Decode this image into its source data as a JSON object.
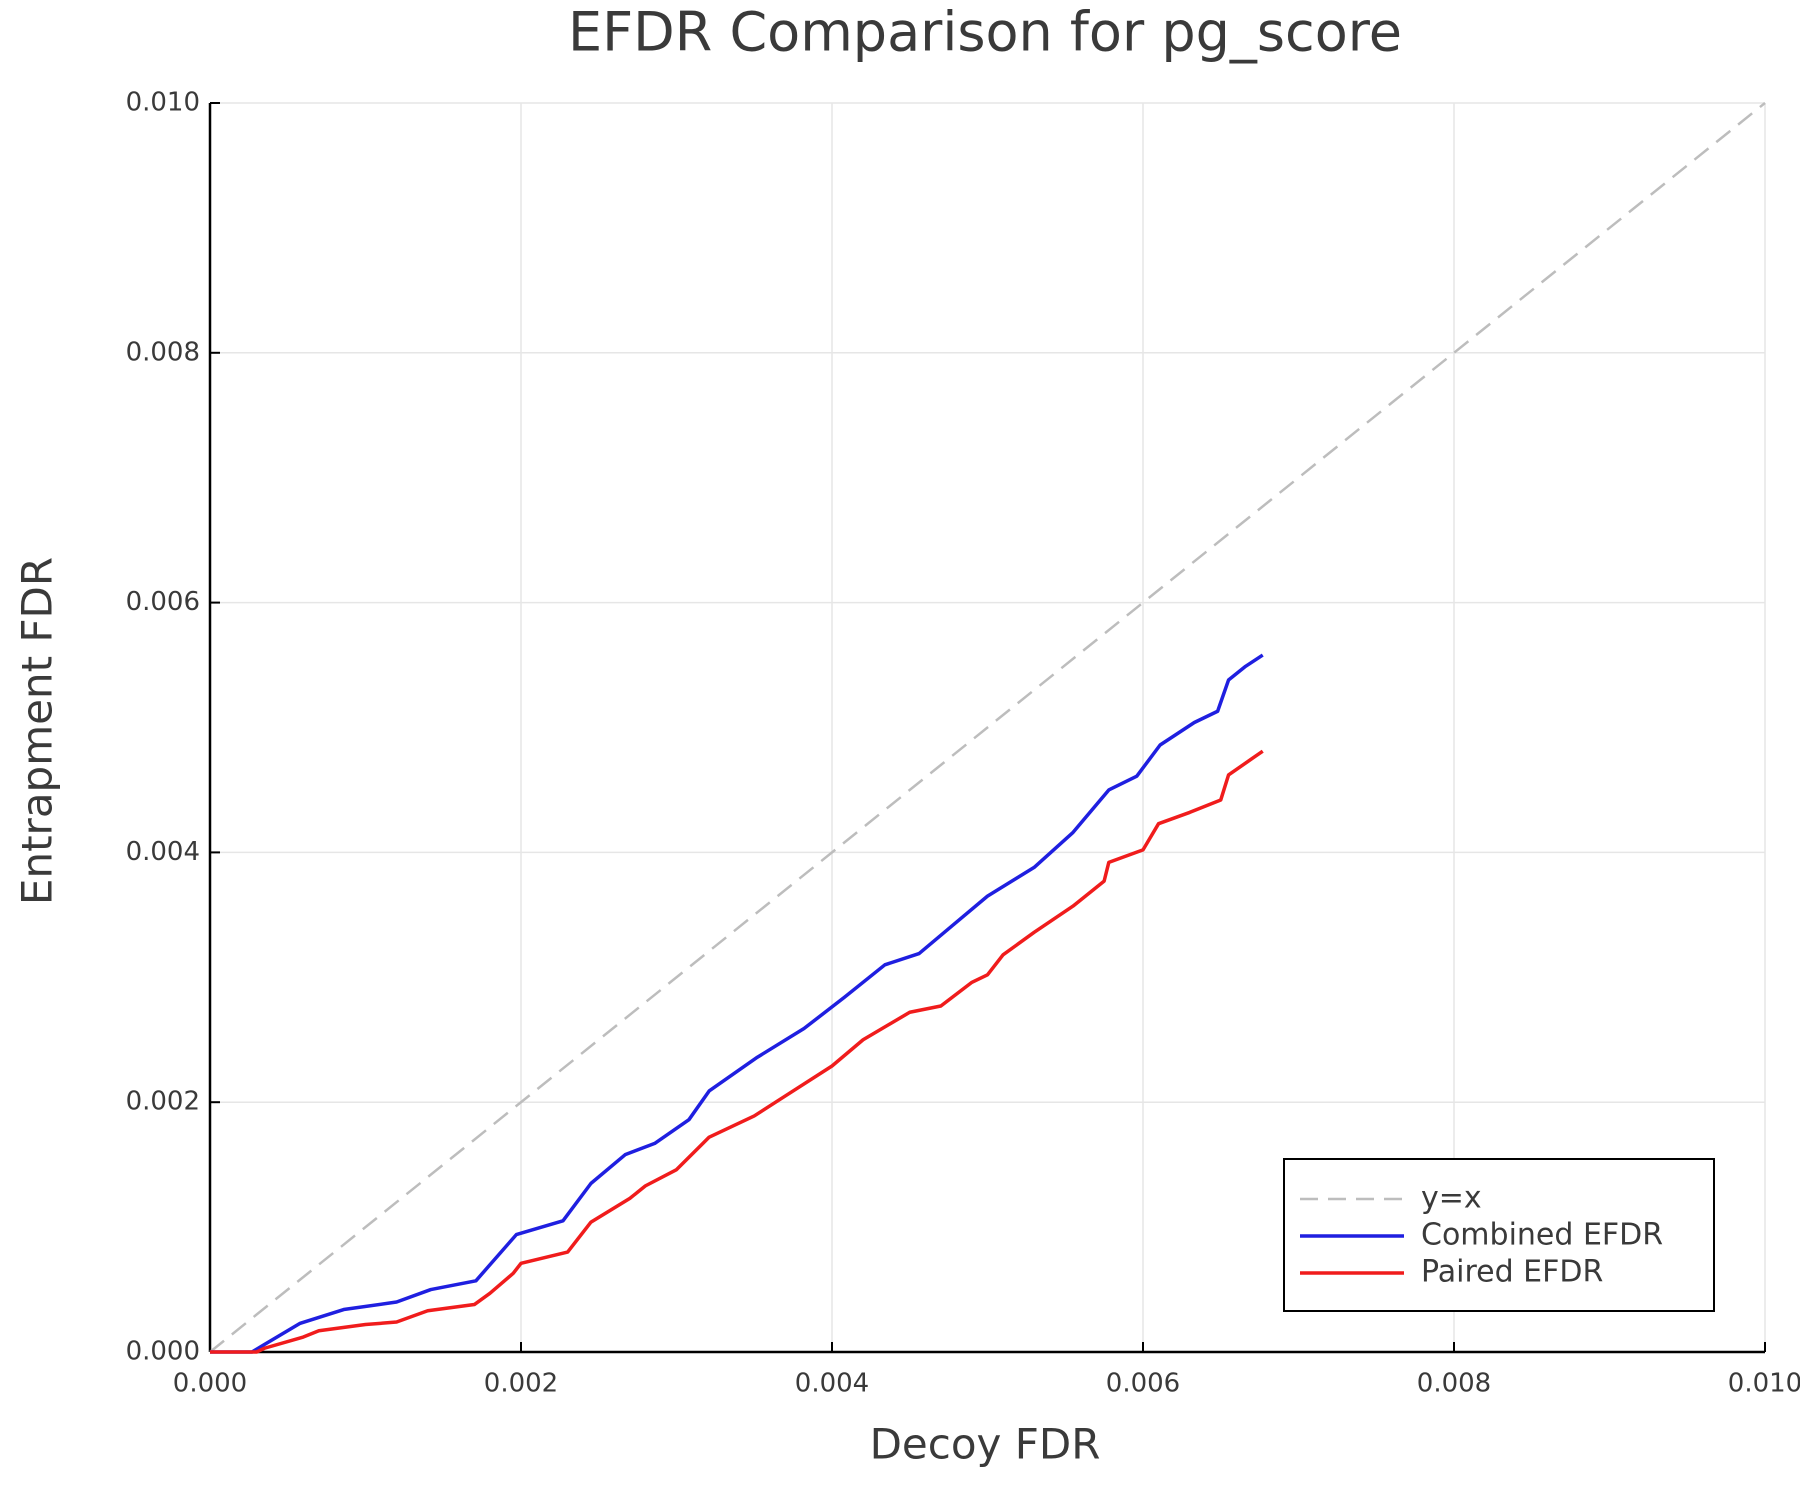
{
  "chart_data": {
    "type": "line",
    "title": "EFDR Comparison for pg_score",
    "xlabel": "Decoy FDR",
    "ylabel": "Entrapment FDR",
    "xlim": [
      0,
      0.01
    ],
    "ylim": [
      0,
      0.01
    ],
    "xticks": [
      {
        "value": 0,
        "label": "0.000"
      },
      0.002,
      0.004,
      0.006,
      0.008,
      {
        "value": 0.01,
        "label": "0.010"
      }
    ],
    "yticks": [
      {
        "value": 0,
        "label": "0.000"
      },
      0.002,
      0.004,
      0.006,
      0.008,
      {
        "value": 0.01,
        "label": "0.010"
      }
    ],
    "grid": true,
    "legend": "bottom-right",
    "series": [
      {
        "name": "y=x",
        "color": "#bdbdbd",
        "dash": true,
        "x": [
          0,
          0.01
        ],
        "values": [
          0,
          0.01
        ]
      },
      {
        "name": "Combined EFDR",
        "color": "#1f1fe0",
        "dash": false,
        "x": [
          0,
          0.00027,
          0.00035,
          0.00058,
          0.00086,
          0.0012,
          0.00142,
          0.00171,
          0.00197,
          0.00227,
          0.00245,
          0.00267,
          0.00286,
          0.00308,
          0.00321,
          0.00352,
          0.00382,
          0.00408,
          0.00434,
          0.00456,
          0.00478,
          0.005,
          0.0053,
          0.00555,
          0.00578,
          0.00596,
          0.00611,
          0.00633,
          0.00648,
          0.00655,
          0.00666,
          0.00677
        ],
        "values": [
          0,
          0,
          6e-05,
          0.00023,
          0.00034,
          0.0004,
          0.0005,
          0.00057,
          0.00094,
          0.00105,
          0.00135,
          0.00158,
          0.00167,
          0.00186,
          0.00209,
          0.00236,
          0.00259,
          0.00284,
          0.0031,
          0.00319,
          0.00342,
          0.00365,
          0.00388,
          0.00416,
          0.0045,
          0.00461,
          0.00486,
          0.00504,
          0.00513,
          0.00538,
          0.00549,
          0.00558
        ]
      },
      {
        "name": "Paired EFDR",
        "color": "#f01c1c",
        "dash": false,
        "x": [
          0,
          0.0003,
          0.00035,
          0.0006,
          0.0007,
          0.001,
          0.0012,
          0.0014,
          0.0017,
          0.0018,
          0.00195,
          0.002,
          0.0023,
          0.00245,
          0.0027,
          0.0028,
          0.003,
          0.00321,
          0.0035,
          0.0037,
          0.004,
          0.0042,
          0.0045,
          0.0047,
          0.0049,
          0.005,
          0.0051,
          0.0053,
          0.00555,
          0.00575,
          0.00578,
          0.006,
          0.0061,
          0.0063,
          0.0065,
          0.00655,
          0.0067,
          0.00677
        ],
        "values": [
          0,
          0,
          3e-05,
          0.00012,
          0.00017,
          0.00022,
          0.00024,
          0.00033,
          0.00038,
          0.00047,
          0.00063,
          0.00071,
          0.0008,
          0.00104,
          0.00123,
          0.00133,
          0.00146,
          0.00172,
          0.00189,
          0.00205,
          0.00229,
          0.0025,
          0.00272,
          0.00277,
          0.00296,
          0.00302,
          0.00318,
          0.00336,
          0.00357,
          0.00377,
          0.00392,
          0.00402,
          0.00423,
          0.00432,
          0.00442,
          0.00462,
          0.00475,
          0.00481
        ]
      }
    ]
  }
}
